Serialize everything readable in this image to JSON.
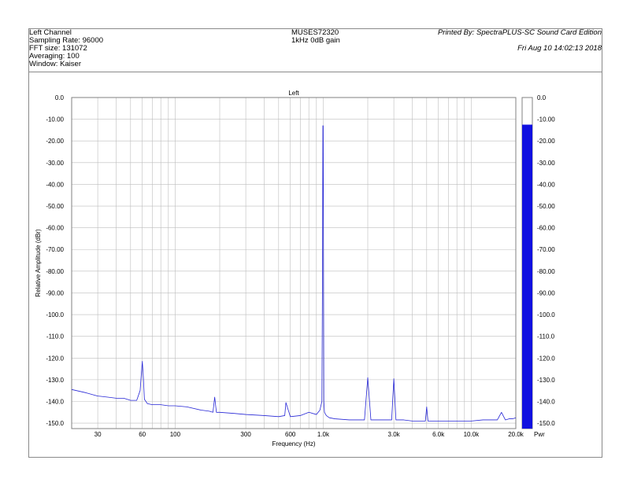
{
  "header": {
    "left_lines": [
      "Left Channel",
      "Sampling Rate: 96000",
      "FFT size: 131072",
      "Averaging: 100",
      "Window: Kaiser"
    ],
    "center_lines": [
      "MUSES72320",
      "1kHz 0dB gain"
    ],
    "printed_by": "Printed By: SpectraPLUS-SC Sound Card Edition",
    "date": "Fri Aug 10 14:02:13 2018"
  },
  "colors": {
    "trace": "#2727d6",
    "meter": "#1010e0",
    "grid": "#bdbdbd",
    "border": "#808080"
  },
  "chart_data": {
    "type": "line",
    "title": "Left",
    "xlabel": "Frequency (Hz)",
    "ylabel": "Relative Amplitude (dBr)",
    "x_scale": "log",
    "xlim": [
      20,
      20000
    ],
    "ylim": [
      -152.5,
      0
    ],
    "x_ticks": [
      {
        "v": 30,
        "label": "30"
      },
      {
        "v": 60,
        "label": "60"
      },
      {
        "v": 100,
        "label": "100"
      },
      {
        "v": 300,
        "label": "300"
      },
      {
        "v": 600,
        "label": "600"
      },
      {
        "v": 1000,
        "label": "1.0k"
      },
      {
        "v": 3000,
        "label": "3.0k"
      },
      {
        "v": 6000,
        "label": "6.0k"
      },
      {
        "v": 10000,
        "label": "10.0k"
      },
      {
        "v": 20000,
        "label": "20.0k"
      }
    ],
    "y_ticks": [
      {
        "v": 0,
        "label": "0.0"
      },
      {
        "v": -10,
        "label": "-10.00"
      },
      {
        "v": -20,
        "label": "-20.00"
      },
      {
        "v": -30,
        "label": "-30.00"
      },
      {
        "v": -40,
        "label": "-40.00"
      },
      {
        "v": -50,
        "label": "-50.00"
      },
      {
        "v": -60,
        "label": "-60.00"
      },
      {
        "v": -70,
        "label": "-70.00"
      },
      {
        "v": -80,
        "label": "-80.00"
      },
      {
        "v": -90,
        "label": "-90.00"
      },
      {
        "v": -100,
        "label": "-100.0"
      },
      {
        "v": -110,
        "label": "-110.0"
      },
      {
        "v": -120,
        "label": "-120.0"
      },
      {
        "v": -130,
        "label": "-130.0"
      },
      {
        "v": -140,
        "label": "-140.0"
      },
      {
        "v": -150,
        "label": "-150.0"
      }
    ],
    "grid": true,
    "series": [
      {
        "x": [
          20,
          25,
          30,
          35,
          40,
          45,
          50,
          55,
          58,
          59,
          60,
          61,
          62,
          65,
          70,
          80,
          90,
          100,
          120,
          150,
          170,
          180,
          185,
          190,
          200,
          250,
          300,
          400,
          500,
          550,
          560,
          600,
          700,
          800,
          900,
          950,
          980,
          990,
          995,
          1000,
          1005,
          1010,
          1020,
          1050,
          1100,
          1200,
          1500,
          1900,
          2000,
          2100,
          2500,
          2900,
          3000,
          3100,
          3500,
          4000,
          4900,
          5000,
          5100,
          6000,
          7000,
          8000,
          10000,
          12000,
          15000,
          16000,
          17000,
          18000,
          19000,
          20000
        ],
        "y": [
          -134.5,
          -136,
          -137.5,
          -138,
          -138.5,
          -138.5,
          -139.5,
          -139.5,
          -135,
          -128,
          -121.5,
          -129,
          -139,
          -141,
          -141.5,
          -141.5,
          -142,
          -142,
          -142.5,
          -144,
          -144.5,
          -145,
          -138,
          -145,
          -145,
          -145.5,
          -146,
          -146.5,
          -147,
          -146.5,
          -140.5,
          -147,
          -146.5,
          -145,
          -146,
          -144,
          -140,
          -74,
          -13,
          -13,
          -74,
          -140,
          -145,
          -146.5,
          -147.5,
          -148,
          -148.5,
          -148.5,
          -129,
          -148.5,
          -148.5,
          -148.5,
          -129.5,
          -148.5,
          -148.5,
          -149,
          -149,
          -142.5,
          -149,
          -149,
          -149,
          -149,
          -149,
          -148.5,
          -148.5,
          -145,
          -148.5,
          -148,
          -148,
          -147.5
        ]
      }
    ],
    "meter": {
      "label": "Pwr",
      "level_db": -12.5,
      "ticks": [
        {
          "v": 0,
          "label": "0.0"
        },
        {
          "v": -10,
          "label": "-10.00"
        },
        {
          "v": -20,
          "label": "-20.00"
        },
        {
          "v": -30,
          "label": "-30.00"
        },
        {
          "v": -40,
          "label": "-40.00"
        },
        {
          "v": -50,
          "label": "-50.00"
        },
        {
          "v": -60,
          "label": "-60.00"
        },
        {
          "v": -70,
          "label": "-70.00"
        },
        {
          "v": -80,
          "label": "-80.00"
        },
        {
          "v": -90,
          "label": "-90.00"
        },
        {
          "v": -100,
          "label": "-100.0"
        },
        {
          "v": -110,
          "label": "-110.0"
        },
        {
          "v": -120,
          "label": "-120.0"
        },
        {
          "v": -130,
          "label": "-130.0"
        },
        {
          "v": -140,
          "label": "-140.0"
        },
        {
          "v": -150,
          "label": "-150.0"
        }
      ]
    }
  }
}
